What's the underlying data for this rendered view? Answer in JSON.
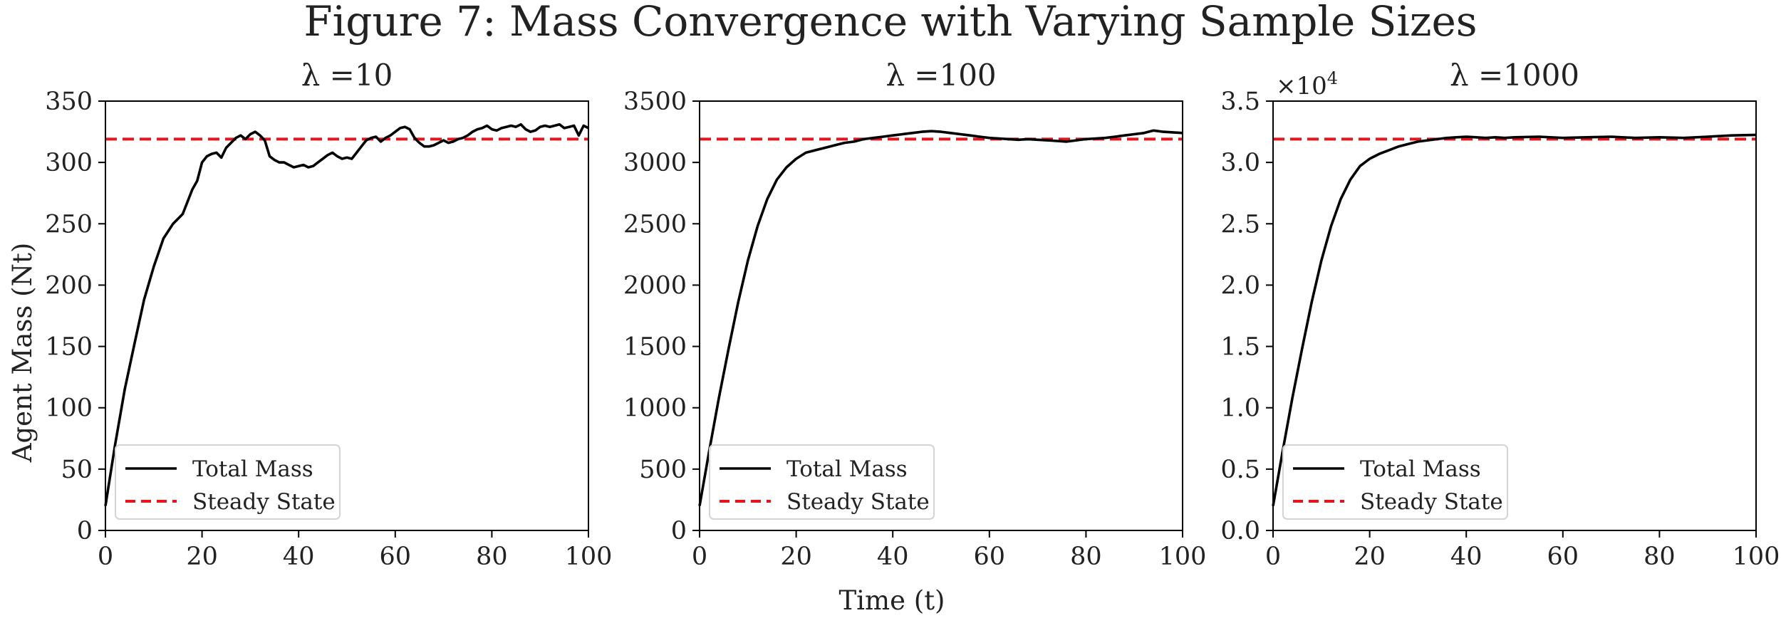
{
  "figure": {
    "title": "Figure 7: Mass Convergence with Varying Sample Sizes",
    "xlabel": "Time (t)",
    "ylabel": "Agent Mass (Nt)"
  },
  "colors": {
    "total_mass": "#000000",
    "steady_state": "#e8141b"
  },
  "chart_data": [
    {
      "type": "line",
      "title": "λ =10",
      "xlim": [
        0,
        100
      ],
      "ylim": [
        0,
        350
      ],
      "yticks": [
        0,
        50,
        100,
        150,
        200,
        250,
        300,
        350
      ],
      "ytick_labels": [
        "0",
        "50",
        "100",
        "150",
        "200",
        "250",
        "300",
        "350"
      ],
      "xticks": [
        0,
        20,
        40,
        60,
        80,
        100
      ],
      "xtick_labels": [
        "0",
        "20",
        "40",
        "60",
        "80",
        "100"
      ],
      "multiplier": "",
      "legend_loc": "lower-left",
      "grid": false,
      "series": [
        {
          "name": "Total Mass",
          "style": "solid",
          "x": [
            0,
            2,
            4,
            6,
            8,
            10,
            12,
            14,
            16,
            18,
            19,
            20,
            21,
            22,
            23,
            24,
            25,
            26,
            27,
            28,
            29,
            30,
            31,
            32,
            33,
            34,
            35,
            36,
            37,
            38,
            39,
            40,
            41,
            42,
            43,
            44,
            45,
            46,
            47,
            48,
            49,
            50,
            51,
            52,
            53,
            54,
            55,
            56,
            57,
            58,
            59,
            60,
            61,
            62,
            63,
            64,
            65,
            66,
            67,
            68,
            69,
            70,
            71,
            72,
            73,
            74,
            75,
            76,
            77,
            78,
            79,
            80,
            81,
            82,
            83,
            84,
            85,
            86,
            87,
            88,
            89,
            90,
            91,
            92,
            93,
            94,
            95,
            96,
            97,
            98,
            99,
            100
          ],
          "y": [
            20,
            70,
            115,
            152,
            188,
            215,
            238,
            250,
            258,
            278,
            285,
            300,
            305,
            307,
            308,
            304,
            312,
            316,
            320,
            322,
            319,
            323,
            325,
            322,
            318,
            305,
            302,
            300,
            300,
            298,
            296,
            297,
            298,
            296,
            297,
            300,
            303,
            306,
            308,
            305,
            303,
            304,
            303,
            308,
            313,
            318,
            320,
            321,
            317,
            320,
            322,
            325,
            328,
            329,
            327,
            320,
            316,
            313,
            313,
            314,
            316,
            318,
            316,
            317,
            319,
            320,
            322,
            325,
            327,
            328,
            330,
            327,
            326,
            328,
            329,
            330,
            329,
            331,
            327,
            325,
            326,
            329,
            330,
            329,
            330,
            331,
            328,
            329,
            330,
            322,
            330,
            328
          ]
        },
        {
          "name": "Steady State",
          "style": "dashed",
          "y_const": 319
        }
      ]
    },
    {
      "type": "line",
      "title": "λ =100",
      "xlim": [
        0,
        100
      ],
      "ylim": [
        0,
        3500
      ],
      "yticks": [
        0,
        500,
        1000,
        1500,
        2000,
        2500,
        3000,
        3500
      ],
      "ytick_labels": [
        "0",
        "500",
        "1000",
        "1500",
        "2000",
        "2500",
        "3000",
        "3500"
      ],
      "xticks": [
        0,
        20,
        40,
        60,
        80,
        100
      ],
      "xtick_labels": [
        "0",
        "20",
        "40",
        "60",
        "80",
        "100"
      ],
      "multiplier": "",
      "legend_loc": "lower-left",
      "grid": false,
      "series": [
        {
          "name": "Total Mass",
          "style": "solid",
          "x": [
            0,
            2,
            4,
            6,
            8,
            10,
            12,
            14,
            16,
            18,
            20,
            22,
            24,
            26,
            28,
            30,
            32,
            34,
            36,
            38,
            40,
            42,
            44,
            46,
            48,
            50,
            52,
            54,
            56,
            58,
            60,
            62,
            64,
            66,
            68,
            70,
            72,
            74,
            76,
            78,
            80,
            82,
            84,
            86,
            88,
            90,
            92,
            94,
            96,
            98,
            100
          ],
          "y": [
            200,
            650,
            1080,
            1480,
            1860,
            2200,
            2480,
            2700,
            2860,
            2960,
            3030,
            3080,
            3100,
            3120,
            3140,
            3160,
            3170,
            3190,
            3200,
            3210,
            3220,
            3230,
            3240,
            3250,
            3255,
            3250,
            3240,
            3230,
            3220,
            3210,
            3200,
            3195,
            3190,
            3185,
            3190,
            3185,
            3180,
            3175,
            3170,
            3180,
            3190,
            3195,
            3200,
            3210,
            3220,
            3230,
            3240,
            3260,
            3250,
            3245,
            3240
          ]
        },
        {
          "name": "Steady State",
          "style": "dashed",
          "y_const": 3190
        }
      ]
    },
    {
      "type": "line",
      "title": "λ =1000",
      "xlim": [
        0,
        100
      ],
      "ylim": [
        0,
        3.5
      ],
      "yticks": [
        0,
        0.5,
        1.0,
        1.5,
        2.0,
        2.5,
        3.0,
        3.5
      ],
      "ytick_labels": [
        "0.0",
        "0.5",
        "1.0",
        "1.5",
        "2.0",
        "2.5",
        "3.0",
        "3.5"
      ],
      "xticks": [
        0,
        20,
        40,
        60,
        80,
        100
      ],
      "xtick_labels": [
        "0",
        "20",
        "40",
        "60",
        "80",
        "100"
      ],
      "multiplier": "×10",
      "multiplier_exp": "4",
      "legend_loc": "lower-left",
      "grid": false,
      "series": [
        {
          "name": "Total Mass",
          "style": "solid",
          "x": [
            0,
            2,
            4,
            6,
            8,
            10,
            12,
            14,
            16,
            18,
            20,
            22,
            24,
            26,
            28,
            30,
            32,
            34,
            36,
            38,
            40,
            42,
            44,
            46,
            48,
            50,
            55,
            60,
            65,
            70,
            75,
            80,
            85,
            90,
            95,
            100
          ],
          "y": [
            0.2,
            0.65,
            1.08,
            1.48,
            1.86,
            2.2,
            2.48,
            2.7,
            2.86,
            2.97,
            3.03,
            3.07,
            3.1,
            3.13,
            3.15,
            3.17,
            3.18,
            3.19,
            3.2,
            3.205,
            3.21,
            3.205,
            3.2,
            3.205,
            3.2,
            3.205,
            3.21,
            3.2,
            3.205,
            3.21,
            3.2,
            3.205,
            3.2,
            3.21,
            3.22,
            3.225
          ]
        },
        {
          "name": "Steady State",
          "style": "dashed",
          "y_const": 3.19
        }
      ]
    }
  ]
}
